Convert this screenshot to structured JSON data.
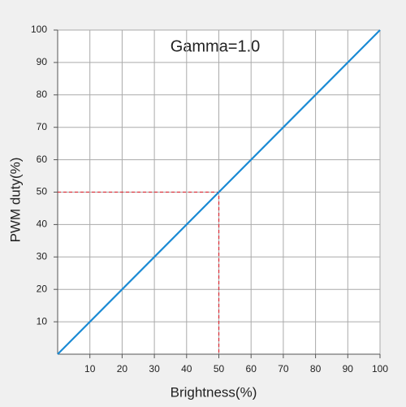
{
  "chart_data": {
    "type": "line",
    "annotation": "Gamma=1.0",
    "x_label": "Brightness(%)",
    "y_label": "PWM duty(%)",
    "x": [
      0,
      100
    ],
    "series": [
      {
        "color": "#1a8ad4",
        "values": [
          0,
          100
        ]
      }
    ],
    "reference": {
      "x": 50,
      "y": 50,
      "color": "#d9303a"
    },
    "xlim": [
      0,
      100
    ],
    "ylim": [
      0,
      100
    ],
    "xticks": [
      10,
      20,
      30,
      40,
      50,
      60,
      70,
      80,
      90,
      100
    ],
    "yticks": [
      10,
      20,
      30,
      40,
      50,
      60,
      70,
      80,
      90,
      100
    ],
    "grid": true
  }
}
